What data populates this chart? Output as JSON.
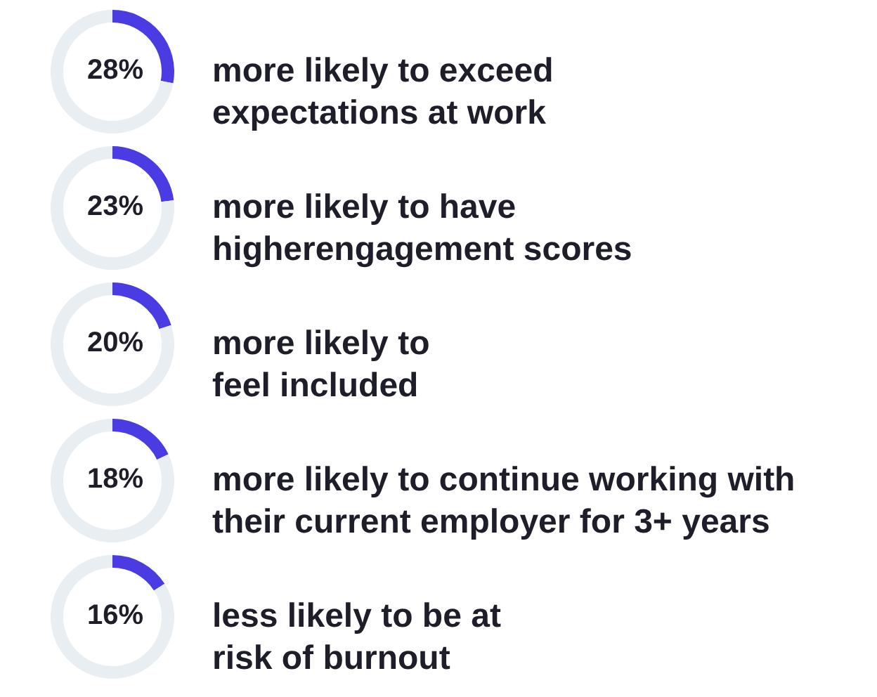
{
  "chart_data": [
    {
      "type": "donut",
      "title": "more likely to exceed\nexpectations at work",
      "categories": [
        null,
        null
      ],
      "values": [
        28,
        72
      ],
      "colors": [
        "#4a3ce2",
        "#e8eef2"
      ],
      "value_labels": [
        "28%",
        null
      ]
    },
    {
      "type": "donut",
      "title": "more likely to have\nhigherengagement scores",
      "categories": [
        null,
        null
      ],
      "values": [
        23,
        77
      ],
      "colors": [
        "#4a3ce2",
        "#e8eef2"
      ],
      "value_labels": [
        "23%",
        null
      ]
    },
    {
      "type": "donut",
      "title": "more likely to\nfeel included",
      "categories": [
        null,
        null
      ],
      "values": [
        20,
        80
      ],
      "colors": [
        "#4a3ce2",
        "#e8eef2"
      ],
      "value_labels": [
        "20%",
        null
      ]
    },
    {
      "type": "donut",
      "title": "more likely to continue working with\ntheir current employer for 3+ years",
      "categories": [
        null,
        null
      ],
      "values": [
        18,
        82
      ],
      "colors": [
        "#4a3ce2",
        "#e8eef2"
      ],
      "value_labels": [
        "18%",
        null
      ]
    },
    {
      "type": "donut",
      "title": "less likely to be at\nrisk of burnout",
      "categories": [
        null,
        null
      ],
      "values": [
        16,
        84
      ],
      "colors": [
        "#4a3ce2",
        "#e8eef2"
      ],
      "value_labels": [
        "16%",
        null
      ]
    }
  ]
}
